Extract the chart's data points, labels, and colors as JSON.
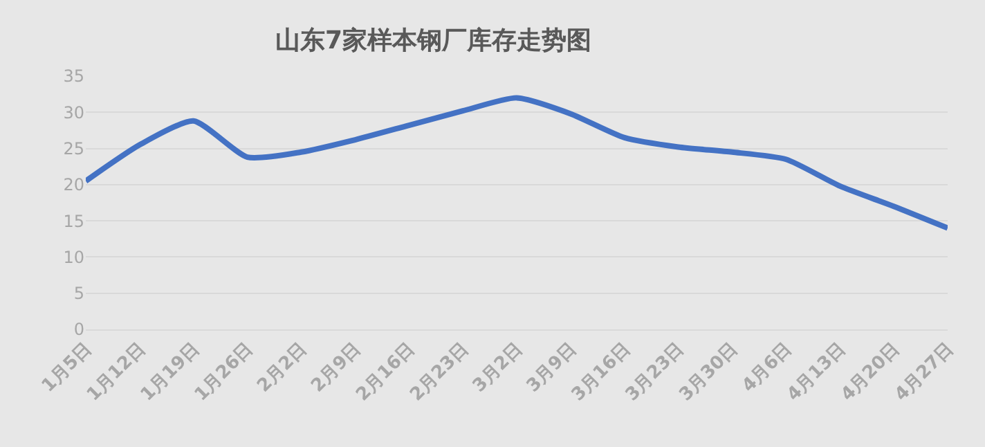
{
  "chart_data": {
    "type": "line",
    "title": "山东7家样本钢厂库存走势图",
    "categories": [
      "1月5日",
      "1月12日",
      "1月19日",
      "1月26日",
      "2月2日",
      "2月9日",
      "2月16日",
      "2月23日",
      "3月2日",
      "3月9日",
      "3月16日",
      "3月23日",
      "3月30日",
      "4月6日",
      "4月13日",
      "4月20日",
      "4月27日"
    ],
    "series": [
      {
        "color": "#4472c4",
        "values": [
          20.5,
          25.5,
          28.8,
          23.8,
          24.5,
          26.2,
          28.2,
          30.2,
          32,
          29.8,
          26.5,
          25.2,
          24.5,
          23.5,
          19.8,
          17,
          14
        ]
      }
    ],
    "ylim": [
      0,
      35
    ],
    "yticks": [
      0,
      5,
      10,
      15,
      20,
      25,
      30,
      35
    ],
    "grid": "y",
    "marker": "none",
    "line_style": "solid"
  }
}
